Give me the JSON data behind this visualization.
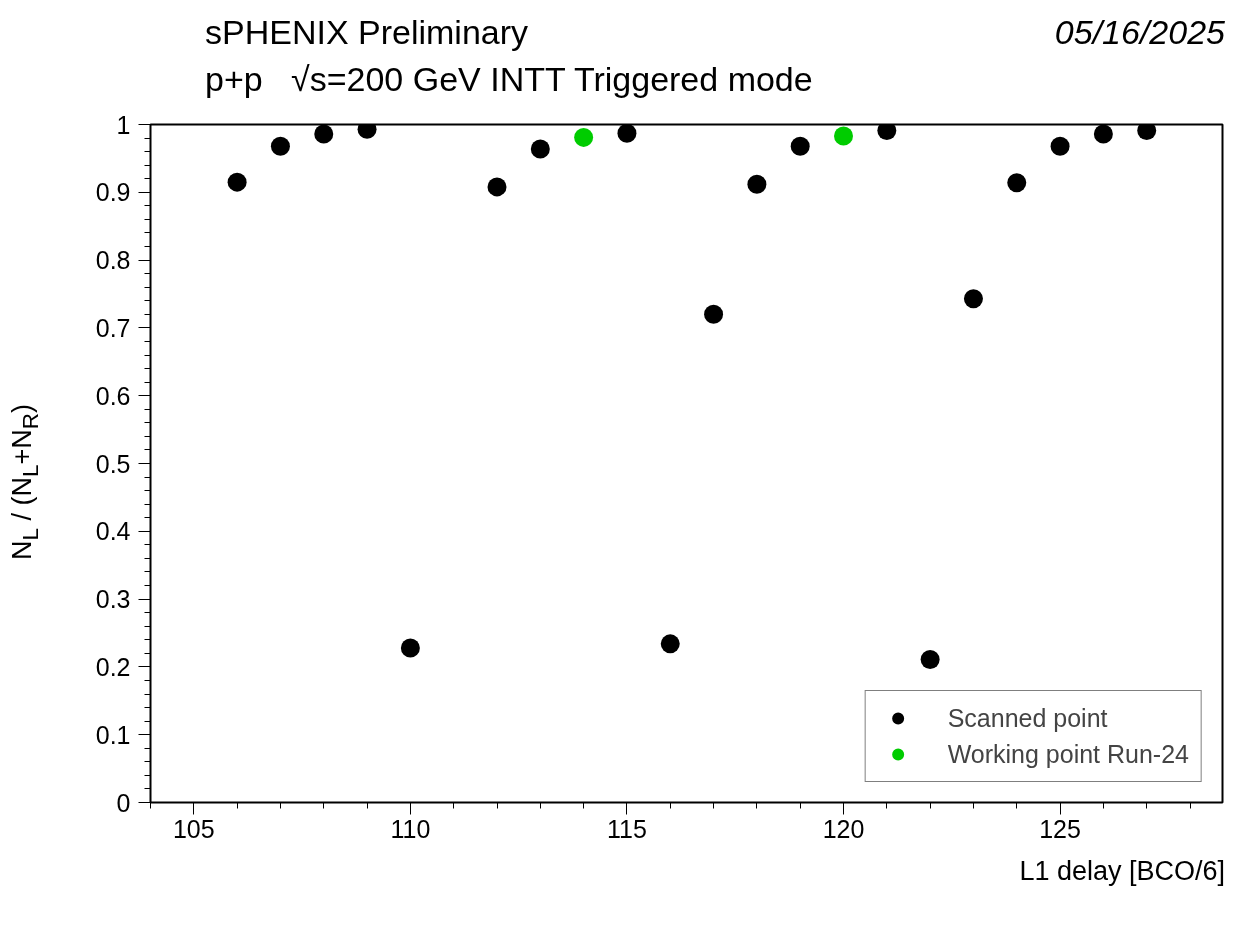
{
  "chart_data": {
    "type": "scatter",
    "title": "sPHENIX Preliminary",
    "subtitle": "p+p   √s=200 GeV INTT Triggered mode",
    "annotations": [
      "05/16/2025"
    ],
    "xlabel": "L1 delay [BCO/6]",
    "ylabel": "N$_{L}$ / (N$_{L}$+N$_{R}$)",
    "xlim": [
      104,
      128.75
    ],
    "ylim": [
      0,
      1.0
    ],
    "xticks": [
      105,
      110,
      115,
      120,
      125
    ],
    "yticks": [
      0,
      0.1,
      0.2,
      0.3,
      0.4,
      0.5,
      0.6,
      0.7,
      0.8,
      0.9,
      1
    ],
    "marker": "circle",
    "grid": false,
    "legend": "bottom right",
    "series": [
      {
        "name": "Scanned point",
        "color": "#000000",
        "x": [
          106,
          107,
          108,
          109,
          110,
          112,
          113,
          115,
          116,
          117,
          118,
          119,
          121,
          122,
          123,
          124,
          125,
          126,
          127
        ],
        "values": [
          0.915,
          0.968,
          0.986,
          0.993,
          0.228,
          0.908,
          0.964,
          0.987,
          0.234,
          0.72,
          0.912,
          0.968,
          0.991,
          0.211,
          0.743,
          0.914,
          0.968,
          0.986,
          0.991
        ]
      },
      {
        "name": "Working point Run-24",
        "color": "#00cc00",
        "x": [
          114,
          120
        ],
        "values": [
          0.981,
          0.983
        ]
      }
    ]
  }
}
